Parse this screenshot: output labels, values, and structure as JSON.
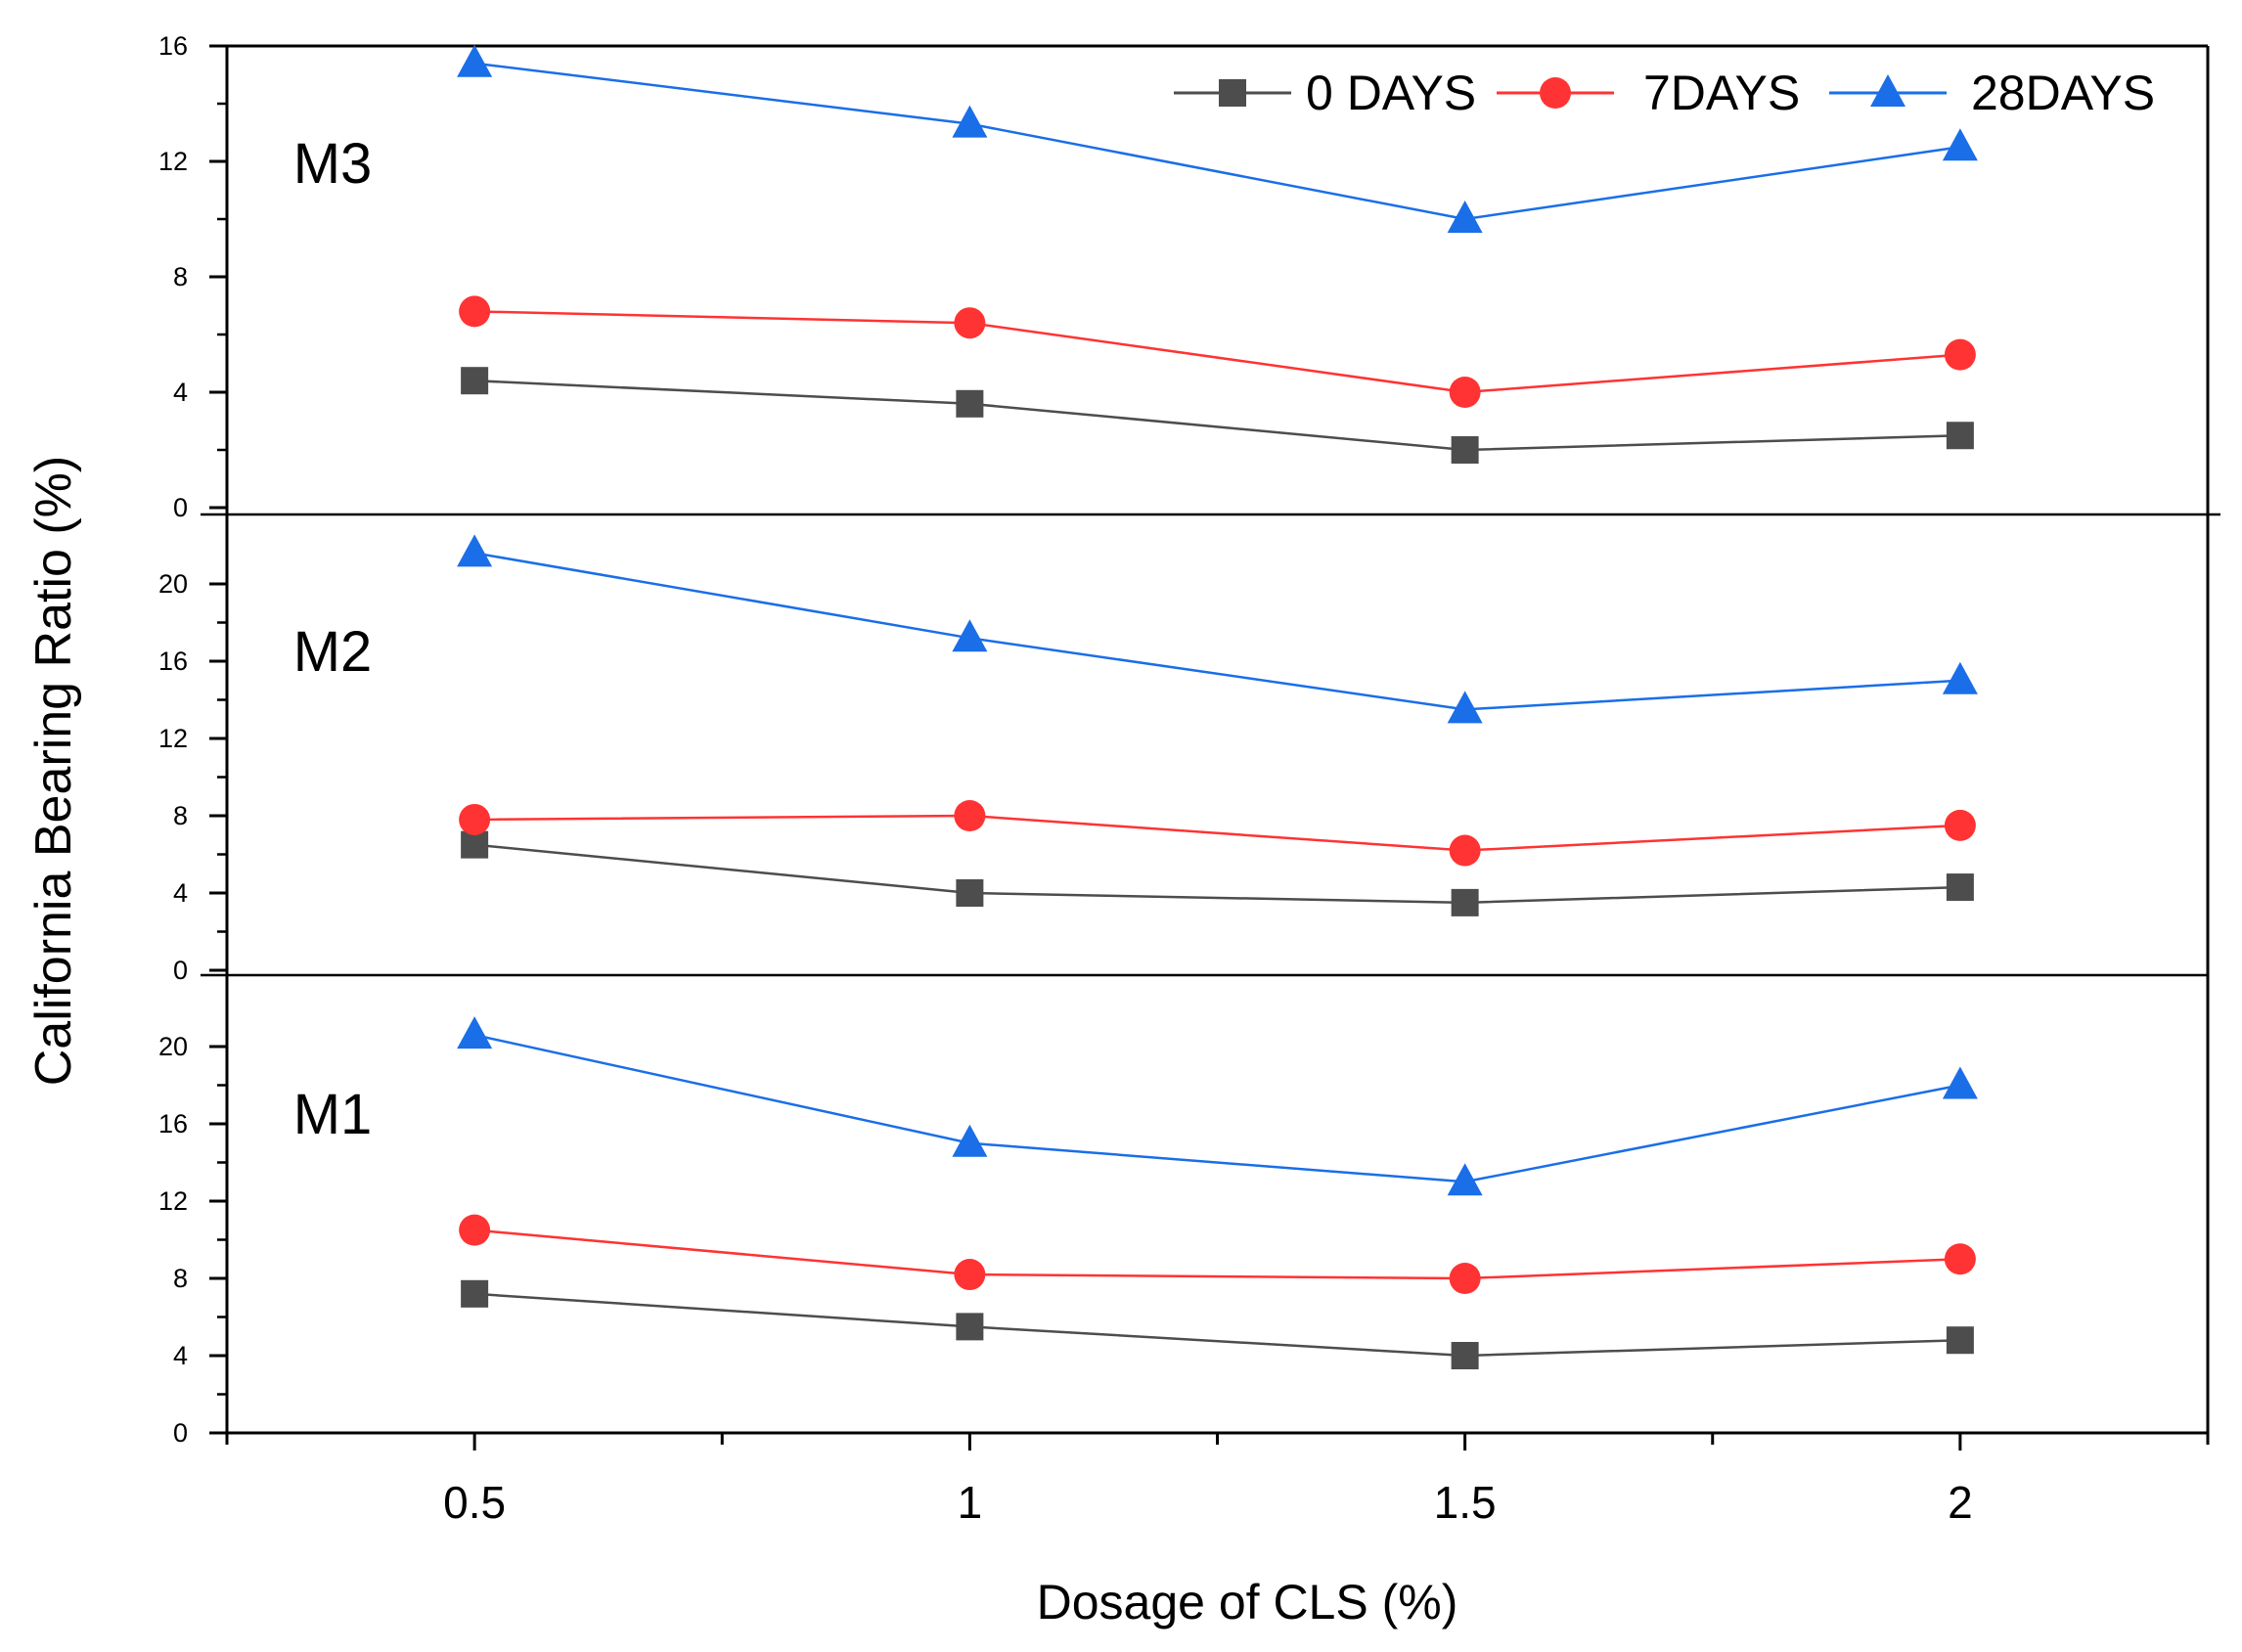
{
  "chart_data": {
    "type": "line",
    "xlabel": "Dosage of CLS (%)",
    "ylabel": "California Bearing Ratio (%)",
    "x": [
      0.5,
      1,
      1.5,
      2
    ],
    "x_tick_labels": [
      "0.5",
      "1",
      "1.5",
      "2"
    ],
    "xlim": [
      0.25,
      2.25
    ],
    "legend": {
      "placement": "top-right",
      "entries": [
        "0 DAYS",
        "7DAYS",
        "28DAYS"
      ]
    },
    "series_styles": [
      {
        "name": "0 DAYS",
        "color": "#4d4d4d",
        "marker": "square"
      },
      {
        "name": "7DAYS",
        "color": "#ff3333",
        "marker": "circle"
      },
      {
        "name": "28DAYS",
        "color": "#1a6ee8",
        "marker": "triangle"
      }
    ],
    "panels": [
      {
        "label": "M3",
        "ylim": [
          0,
          16
        ],
        "yticks": [
          0,
          4,
          8,
          12,
          16
        ],
        "series": [
          {
            "name": "0 DAYS",
            "values": [
              4.4,
              3.6,
              2.0,
              2.5
            ]
          },
          {
            "name": "7DAYS",
            "values": [
              6.8,
              6.4,
              4.0,
              5.3
            ]
          },
          {
            "name": "28DAYS",
            "values": [
              15.4,
              13.3,
              10.0,
              12.5
            ]
          }
        ]
      },
      {
        "label": "M2",
        "ylim": [
          0,
          24
        ],
        "yticks": [
          0,
          4,
          8,
          12,
          16,
          20
        ],
        "series": [
          {
            "name": "0 DAYS",
            "values": [
              6.5,
              4.0,
              3.5,
              4.3
            ]
          },
          {
            "name": "7DAYS",
            "values": [
              7.8,
              8.0,
              6.2,
              7.5
            ]
          },
          {
            "name": "28DAYS",
            "values": [
              21.6,
              17.2,
              13.5,
              15.0
            ]
          }
        ]
      },
      {
        "label": "M1",
        "ylim": [
          0,
          24
        ],
        "yticks": [
          0,
          4,
          8,
          12,
          16,
          20
        ],
        "series": [
          {
            "name": "0 DAYS",
            "values": [
              7.2,
              5.5,
              4.0,
              4.8
            ]
          },
          {
            "name": "7DAYS",
            "values": [
              10.5,
              8.2,
              8.0,
              9.0
            ]
          },
          {
            "name": "28DAYS",
            "values": [
              20.6,
              15.0,
              13.0,
              18.0
            ]
          }
        ]
      }
    ]
  }
}
